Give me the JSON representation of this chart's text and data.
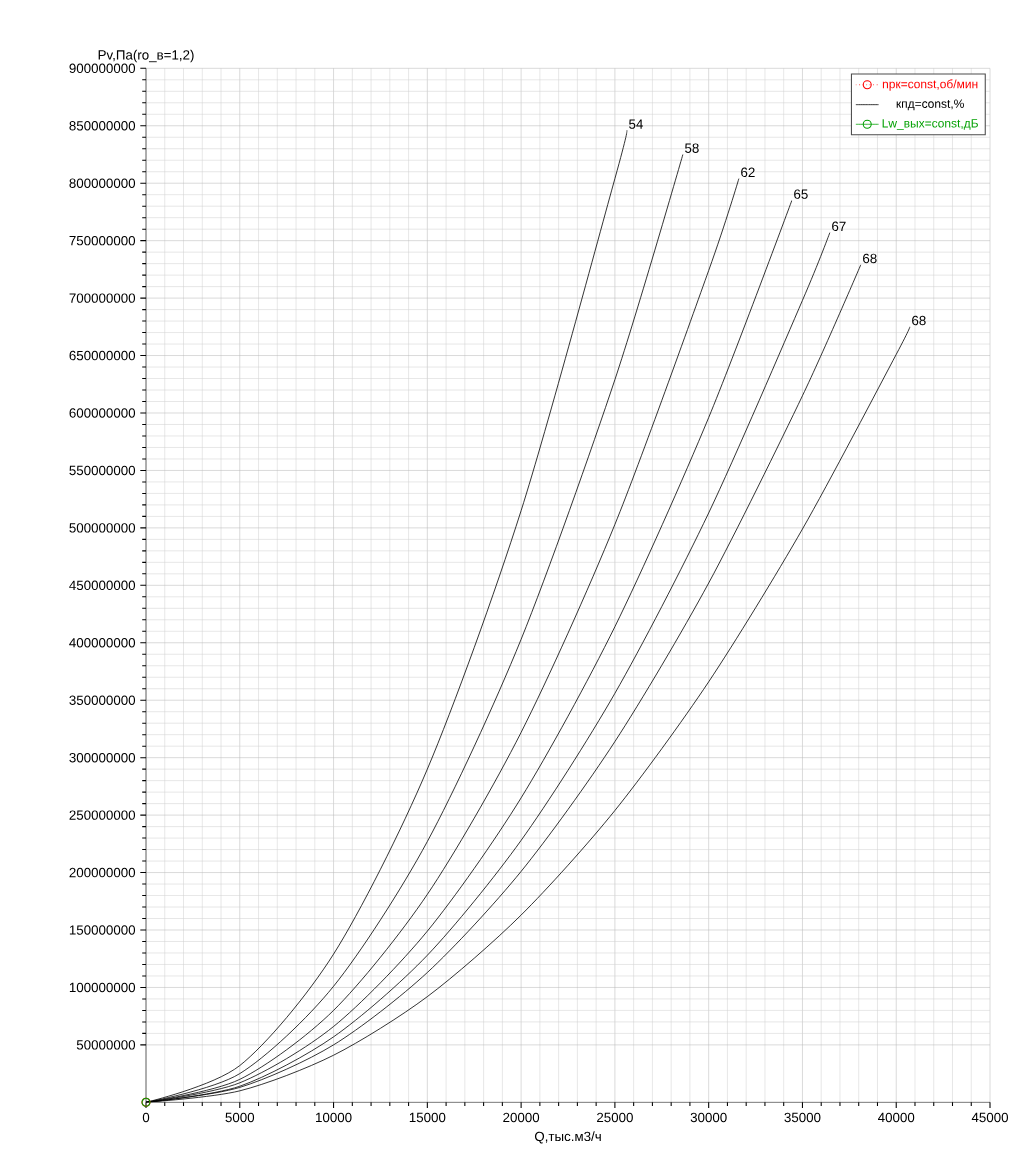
{
  "chart_data": {
    "type": "line",
    "xlabel": "Q,тыс.м3/ч",
    "ylabel": "Pv,Па(ro_в=1,2)",
    "xlim": [
      0,
      45000
    ],
    "ylim": [
      0,
      900000000
    ],
    "xticks": [
      0,
      5000,
      10000,
      15000,
      20000,
      25000,
      30000,
      35000,
      40000,
      45000
    ],
    "yticks": [
      50000000,
      100000000,
      150000000,
      200000000,
      250000000,
      300000000,
      350000000,
      400000000,
      450000000,
      500000000,
      550000000,
      600000000,
      650000000,
      700000000,
      750000000,
      800000000,
      850000000,
      900000000
    ],
    "grid": true,
    "legend": "top right",
    "series": [
      {
        "name": "nрк=const,об/мин",
        "color": "#ff0000",
        "line_style": "dotted",
        "marker": "circle",
        "x": [
          0
        ],
        "values": [
          0
        ]
      },
      {
        "name": "кпд=const,%",
        "color": "#000000",
        "x": [
          0,
          5000,
          10000,
          15000,
          20000,
          25000,
          25640
        ],
        "values": [
          0,
          32000000,
          129000000,
          290000000,
          515000000,
          804000000,
          846000000
        ]
      },
      {
        "color": "#000000",
        "x": [
          0,
          5000,
          10000,
          15000,
          20000,
          25000,
          28625
        ],
        "values": [
          0,
          25000000,
          101000000,
          227000000,
          403000000,
          629000000,
          825000000
        ]
      },
      {
        "color": "#000000",
        "x": [
          0,
          5000,
          10000,
          15000,
          20000,
          25000,
          30000,
          31610
        ],
        "values": [
          0,
          20000000,
          80000000,
          181000000,
          322000000,
          503000000,
          724000000,
          804000000
        ]
      },
      {
        "color": "#000000",
        "x": [
          0,
          5000,
          10000,
          15000,
          20000,
          25000,
          30000,
          34435
        ],
        "values": [
          0,
          17000000,
          66000000,
          149000000,
          265000000,
          414000000,
          596000000,
          785000000
        ]
      },
      {
        "color": "#000000",
        "x": [
          0,
          5000,
          10000,
          15000,
          20000,
          25000,
          30000,
          35000,
          36460
        ],
        "values": [
          0,
          14000000,
          57000000,
          128000000,
          228000000,
          356000000,
          513000000,
          698000000,
          757000000
        ]
      },
      {
        "color": "#000000",
        "x": [
          0,
          5000,
          10000,
          15000,
          20000,
          25000,
          30000,
          35000,
          38110
        ],
        "values": [
          0,
          13000000,
          50000000,
          113000000,
          201000000,
          314000000,
          452000000,
          615000000,
          729000000
        ]
      },
      {
        "color": "#000000",
        "x": [
          0,
          5000,
          10000,
          15000,
          20000,
          25000,
          30000,
          35000,
          40000,
          40725
        ],
        "values": [
          0,
          10000000,
          41000000,
          92000000,
          163000000,
          254000000,
          366000000,
          499000000,
          651000000,
          675000000
        ]
      },
      {
        "name": "Lw_вых=const,дБ",
        "color": "#00a000",
        "marker": "circle",
        "x": [
          0
        ],
        "values": [
          0
        ]
      }
    ],
    "annotations": [
      {
        "text": "54",
        "x": 25640,
        "y": 846000000
      },
      {
        "text": "58",
        "x": 28625,
        "y": 825000000
      },
      {
        "text": "62",
        "x": 31610,
        "y": 804000000
      },
      {
        "text": "65",
        "x": 34435,
        "y": 785000000
      },
      {
        "text": "67",
        "x": 36460,
        "y": 757000000
      },
      {
        "text": "68",
        "x": 38110,
        "y": 729000000
      },
      {
        "text": "68",
        "x": 40725,
        "y": 675000000
      }
    ]
  }
}
